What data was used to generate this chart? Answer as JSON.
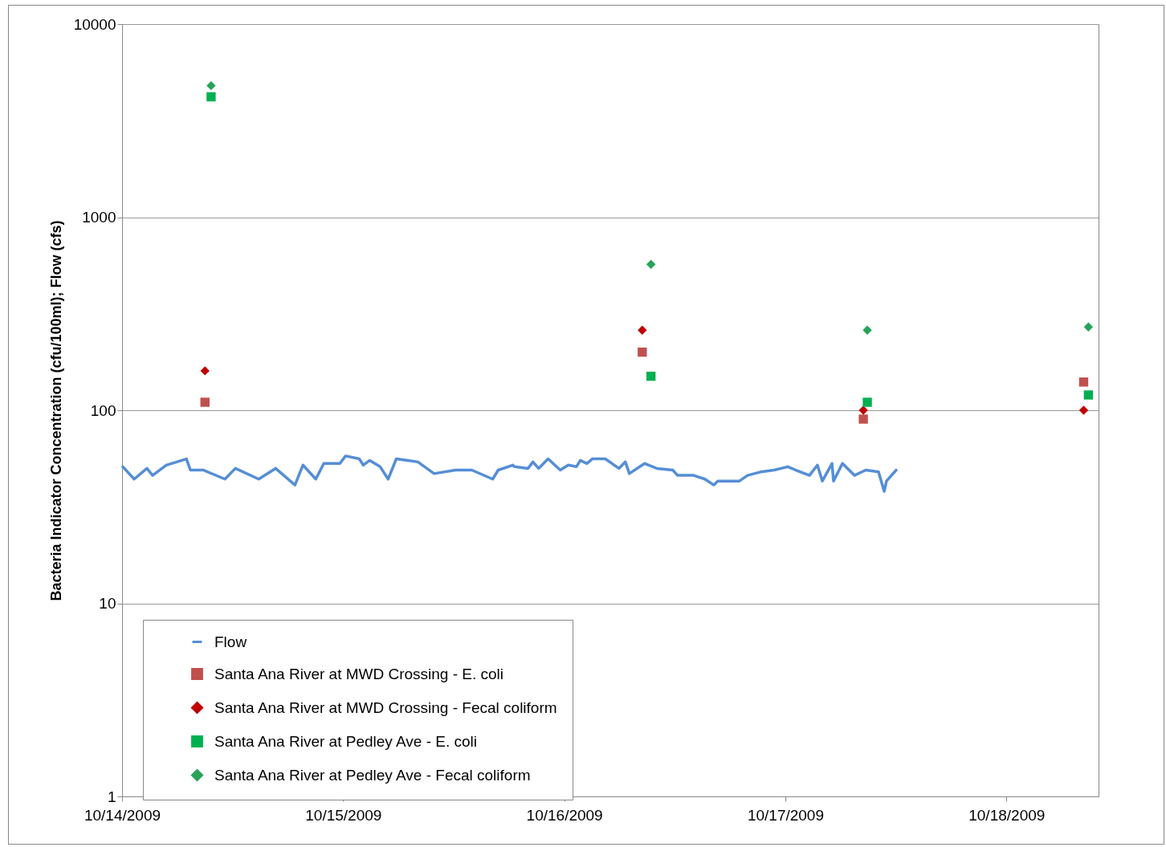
{
  "chart_data": {
    "type": "scatter",
    "ylabel": "Bacteria Indicator Concentration (cfu/100ml); Flow (cfs)",
    "log": "y",
    "ylim": [
      1,
      10000
    ],
    "yticks": [
      1,
      10,
      100,
      1000,
      10000
    ],
    "xlim": [
      "2009-10-14",
      "2009-10-18T10:00"
    ],
    "xticks": [
      {
        "value": "2009-10-14",
        "label": "10/14/2009"
      },
      {
        "value": "2009-10-15",
        "label": "10/15/2009"
      },
      {
        "value": "2009-10-16",
        "label": "10/16/2009"
      },
      {
        "value": "2009-10-17",
        "label": "10/17/2009"
      },
      {
        "value": "2009-10-18",
        "label": "10/18/2009"
      }
    ],
    "grid": "y",
    "legend": "bottom left",
    "series": [
      {
        "name": "Flow",
        "type": "line",
        "line_style": "solid",
        "color": "#558ed5",
        "x": [
          "2009-10-14T00:05",
          "2009-10-14T01:19",
          "2009-10-14T02:42",
          "2009-10-14T03:19",
          "2009-10-14T04:48",
          "2009-10-14T05:56",
          "2009-10-14T06:59",
          "2009-10-14T07:25",
          "2009-10-14T08:49",
          "2009-10-14T11:10",
          "2009-10-14T12:18",
          "2009-10-14T14:50",
          "2009-10-14T16:40",
          "2009-10-14T18:46",
          "2009-10-14T19:38",
          "2009-10-14T21:02",
          "2009-10-14T21:54",
          "2009-10-14T23:39",
          "2009-10-15T00:16",
          "2009-10-15T01:45",
          "2009-10-15T02:11",
          "2009-10-15T02:53",
          "2009-10-15T04:01",
          "2009-10-15T04:53",
          "2009-10-15T05:46",
          "2009-10-15T08:07",
          "2009-10-15T09:52",
          "2009-10-15T12:13",
          "2009-10-15T13:58",
          "2009-10-15T16:14",
          "2009-10-15T16:50",
          "2009-10-15T18:25",
          "2009-10-15T18:35",
          "2009-10-15T20:04",
          "2009-10-15T20:36",
          "2009-10-15T21:13",
          "2009-10-15T22:15",
          "2009-10-15T23:34",
          "2009-10-16T00:26",
          "2009-10-16T01:19",
          "2009-10-16T01:45",
          "2009-10-16T02:27",
          "2009-10-16T03:03",
          "2009-10-16T04:27",
          "2009-10-16T05:56",
          "2009-10-16T06:38",
          "2009-10-16T07:04",
          "2009-10-16T08:44",
          "2009-10-16T10:02",
          "2009-10-16T11:47",
          "2009-10-16T12:18",
          "2009-10-16T14:03",
          "2009-10-16T15:16",
          "2009-10-16T16:14",
          "2009-10-16T16:40",
          "2009-10-16T19:01",
          "2009-10-16T19:54",
          "2009-10-16T21:23",
          "2009-10-16T22:47",
          "2009-10-17T00:16",
          "2009-10-17T01:08",
          "2009-10-17T02:37",
          "2009-10-17T03:29",
          "2009-10-17T04:01",
          "2009-10-17T05:04",
          "2009-10-17T05:14",
          "2009-10-17T06:12",
          "2009-10-17T07:30",
          "2009-10-17T08:44",
          "2009-10-17T10:07",
          "2009-10-17T10:44",
          "2009-10-17T10:59",
          "2009-10-17T12:02"
        ],
        "values": [
          51,
          44,
          50,
          46,
          52,
          54,
          56,
          49,
          49,
          44,
          50,
          44,
          50,
          41,
          52,
          44,
          53,
          53,
          58,
          56,
          52,
          55,
          51,
          44,
          56,
          54,
          47,
          49,
          49,
          44,
          49,
          52,
          51,
          50,
          54,
          50,
          56,
          49,
          52,
          51,
          55,
          53,
          56,
          56,
          50,
          54,
          47,
          53,
          50,
          49,
          46,
          46,
          44,
          41,
          43,
          43,
          46,
          48,
          49,
          51,
          49,
          46,
          52,
          43,
          53,
          43,
          53,
          46,
          49,
          48,
          38,
          43,
          49
        ]
      },
      {
        "name": "Santa Ana River at MWD Crossing - E. coli",
        "marker": "square",
        "color": "#c0504d",
        "x": [
          "2009-10-14T09:00",
          "2009-10-16T08:28",
          "2009-10-17T08:28",
          "2009-10-18T08:23"
        ],
        "values": [
          110,
          200,
          90,
          140
        ]
      },
      {
        "name": "Santa Ana River at MWD Crossing - Fecal coliform",
        "marker": "diamond",
        "color": "#c00000",
        "x": [
          "2009-10-14T09:00",
          "2009-10-16T08:28",
          "2009-10-17T08:28",
          "2009-10-18T08:23"
        ],
        "values": [
          160,
          260,
          100,
          100
        ]
      },
      {
        "name": "Santa Ana River at Pedley Ave - E. coli",
        "marker": "square",
        "color": "#00b050",
        "x": [
          "2009-10-14T09:40",
          "2009-10-16T09:25",
          "2009-10-17T08:54",
          "2009-10-18T08:54"
        ],
        "values": [
          4200,
          150,
          110,
          120
        ]
      },
      {
        "name": "Santa Ana River at Pedley Ave - Fecal coliform",
        "marker": "diamond",
        "color": "#27a35a",
        "x": [
          "2009-10-14T09:40",
          "2009-10-16T09:25",
          "2009-10-17T08:54",
          "2009-10-18T08:54"
        ],
        "values": [
          4800,
          570,
          260,
          270
        ]
      }
    ]
  }
}
